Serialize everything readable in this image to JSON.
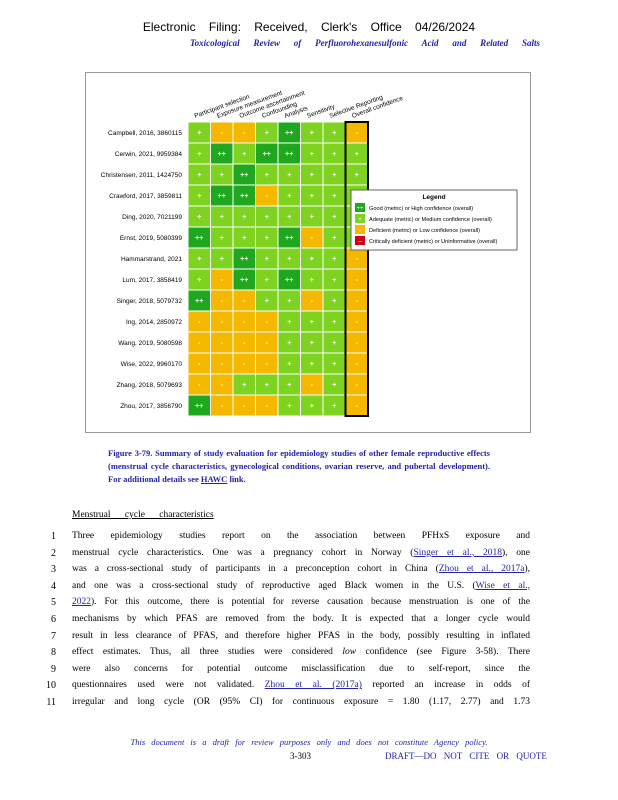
{
  "header": {
    "filing": "Electronic Filing: Received, Clerk's Office 04/26/2024",
    "running_title": "Toxicological Review of Perfluorohexanesulfonic Acid and Related Salts"
  },
  "figure": {
    "columns": [
      "Participant selection",
      "Exposure measurement",
      "Outcome ascertainment",
      "Confounding",
      "Analysis",
      "Sensitivity",
      "Selective Reporting",
      "Overall confidence"
    ],
    "rows": [
      {
        "label": "Campbell, 2016, 3860115",
        "cells": [
          "+",
          "-",
          "-",
          "+",
          "++",
          "+",
          "+",
          "-"
        ]
      },
      {
        "label": "Cerwin, 2021, 9959384",
        "cells": [
          "+",
          "++",
          "+",
          "++",
          "++",
          "+",
          "+",
          "+"
        ]
      },
      {
        "label": "Christensen, 2011, 1424750",
        "cells": [
          "+",
          "+",
          "++",
          "+",
          "+",
          "+",
          "+",
          "+"
        ]
      },
      {
        "label": "Crawford, 2017, 3859811",
        "cells": [
          "+",
          "++",
          "++",
          "-",
          "+",
          "+",
          "+",
          "+"
        ]
      },
      {
        "label": "Ding, 2020, 7021199",
        "cells": [
          "+",
          "+",
          "+",
          "+",
          "+",
          "+",
          "+",
          "+"
        ]
      },
      {
        "label": "Ernst, 2019, 5080399",
        "cells": [
          "++",
          "+",
          "+",
          "+",
          "++",
          "-",
          "+",
          "+"
        ]
      },
      {
        "label": "Hammarstrand, 2021",
        "cells": [
          "+",
          "+",
          "++",
          "+",
          "+",
          "+",
          "+",
          "-"
        ]
      },
      {
        "label": "Lum, 2017, 3858419",
        "cells": [
          "+",
          "-",
          "++",
          "+",
          "++",
          "+",
          "+",
          "-"
        ]
      },
      {
        "label": "Singer, 2018, 5079732",
        "cells": [
          "++",
          "-",
          "-",
          "+",
          "+",
          "-",
          "+",
          "-"
        ]
      },
      {
        "label": "Ing, 2014, 2850972",
        "cells": [
          "-",
          "-",
          "-",
          "-",
          "+",
          "+",
          "+",
          "-"
        ]
      },
      {
        "label": "Wang, 2019, 5080598",
        "cells": [
          "-",
          "-",
          "-",
          "-",
          "+",
          "+",
          "+",
          "-"
        ]
      },
      {
        "label": "Wise, 2022, 9960170",
        "cells": [
          "-",
          "-",
          "-",
          "-",
          "+",
          "+",
          "+",
          "-"
        ]
      },
      {
        "label": "Zhang, 2018, 5079693",
        "cells": [
          "-",
          "-",
          "+",
          "+",
          "+",
          "-",
          "+",
          "-"
        ]
      },
      {
        "label": "Zhou, 2017, 3856790",
        "cells": [
          "++",
          "-",
          "-",
          "-",
          "+",
          "+",
          "+",
          "-"
        ]
      }
    ],
    "legend": {
      "title": "Legend",
      "items": [
        {
          "symbol": "++",
          "color": "#1fa81f",
          "label": "Good (metric) or High confidence (overall)"
        },
        {
          "symbol": "+",
          "color": "#7ed321",
          "label": "Adequate (metric) or Medium confidence (overall)"
        },
        {
          "symbol": "-",
          "color": "#f5b800",
          "label": "Deficient (metric) or Low confidence (overall)"
        },
        {
          "symbol": "--",
          "color": "#d0021b",
          "label": "Critically deficient (metric) or Uninformative (overall)"
        }
      ]
    }
  },
  "caption": [
    {
      "text": "Figure 3-79. Summary of study evaluation for epidemiology studies of other female reproductive effects (menstrual cycle characteristics, gynecological conditions, ovarian reserve, and pubertal development). ",
      "style": "bold"
    },
    {
      "text": "For additional details see ",
      "style": "plain"
    },
    {
      "text": "HAWC",
      "style": "link"
    },
    {
      "text": " link.",
      "style": "plain"
    }
  ],
  "section_heading": "Menstrual cycle characteristics",
  "lines": [
    {
      "number": 1,
      "parts": [
        {
          "text": "Three epidemiology studies report on the association between PFHxS exposure and",
          "style": "plain"
        }
      ]
    },
    {
      "number": 2,
      "parts": [
        {
          "text": "menstrual cycle characteristics. One was a pregnancy cohort in Norway (",
          "style": "plain"
        },
        {
          "text": "Singer et al., 2018",
          "style": "link"
        },
        {
          "text": "), one",
          "style": "plain"
        }
      ]
    },
    {
      "number": 3,
      "parts": [
        {
          "text": "was a cross-sectional study of participants in a preconception cohort in China (",
          "style": "plain"
        },
        {
          "text": "Zhou et al., 2017a",
          "style": "link"
        },
        {
          "text": "),",
          "style": "plain"
        }
      ]
    },
    {
      "number": 4,
      "parts": [
        {
          "text": "and one was a cross-sectional study of reproductive aged Black women in the U.S. (",
          "style": "plain"
        },
        {
          "text": "Wise et al.,",
          "style": "link"
        }
      ]
    },
    {
      "number": 5,
      "parts": [
        {
          "text": "2022",
          "style": "link"
        },
        {
          "text": "). For this outcome, there is potential for reverse causation because menstruation is one of the",
          "style": "plain"
        }
      ]
    },
    {
      "number": 6,
      "parts": [
        {
          "text": "mechanisms by which PFAS are removed from the body. It is expected that a longer cycle would",
          "style": "plain"
        }
      ]
    },
    {
      "number": 7,
      "parts": [
        {
          "text": "result in less clearance of PFAS, and therefore higher PFAS in the body, possibly resulting in inflated",
          "style": "plain"
        }
      ]
    },
    {
      "number": 8,
      "parts": [
        {
          "text": "effect estimates. Thus, all three studies were considered ",
          "style": "plain"
        },
        {
          "text": "low",
          "style": "italic"
        },
        {
          "text": " confidence (see Figure 3-58). There",
          "style": "plain"
        }
      ]
    },
    {
      "number": 9,
      "parts": [
        {
          "text": "were also concerns for potential outcome misclassification due to self-report, since the",
          "style": "plain"
        }
      ]
    },
    {
      "number": 10,
      "parts": [
        {
          "text": "questionnaires used were not validated. ",
          "style": "plain"
        },
        {
          "text": "Zhou et al. (2017a)",
          "style": "link"
        },
        {
          "text": " reported an increase in odds of",
          "style": "plain"
        }
      ]
    },
    {
      "number": 11,
      "parts": [
        {
          "text": "irregular and long cycle (OR (95% CI) for continuous exposure = 1.80 (1.17, 2.77) and 1.73",
          "style": "plain"
        }
      ]
    }
  ],
  "footer": {
    "disclaimer": "This document is a draft for review purposes only and does not constitute Agency policy.",
    "page": "3-303",
    "draft": "DRAFT—DO NOT CITE OR QUOTE"
  }
}
